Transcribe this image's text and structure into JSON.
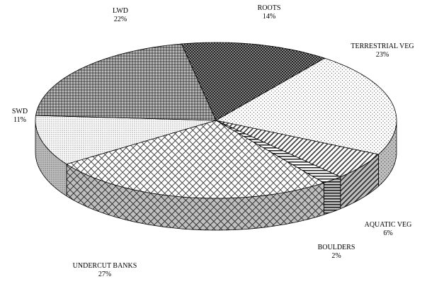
{
  "chart_data": {
    "type": "pie",
    "categories": [
      "ROOTS",
      "TERRESTRIAL VEG",
      "AQUATIC VEG",
      "BOULDERS",
      "UNDERCUT BANKS",
      "SWD",
      "LWD"
    ],
    "values": [
      14,
      23,
      6,
      2,
      27,
      11,
      22
    ],
    "value_labels": [
      "14%",
      "23%",
      "6%",
      "2%",
      "27%",
      "11%",
      "22%"
    ]
  }
}
